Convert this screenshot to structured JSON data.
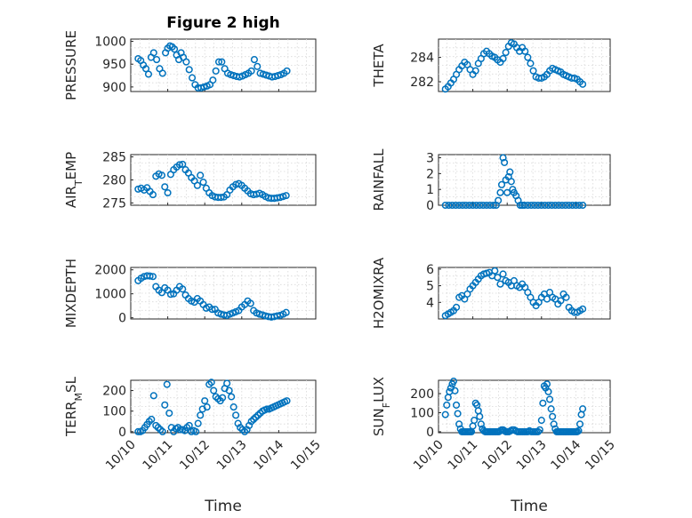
{
  "figure": {
    "title": "Figure 2 high",
    "left_xlabel": "Time",
    "right_xlabel": "Time"
  },
  "colors": {
    "marker": "#0072BD",
    "axis": "#262626",
    "grid": "#d8d8d8"
  },
  "chart_data": [
    {
      "type": "scatter",
      "panel": "pressure",
      "ylabel": "PRESSURE",
      "xticks": [
        "10/10",
        "10/11",
        "10/12",
        "10/13",
        "10/14",
        "10/15"
      ],
      "xtick_labels_visible": false,
      "xlim": [
        0,
        5
      ],
      "ylim": [
        890,
        1005
      ],
      "yticks": [
        900,
        950,
        1000
      ],
      "grid": true,
      "x": [
        0.2,
        0.27,
        0.34,
        0.41,
        0.48,
        0.55,
        0.62,
        0.7,
        0.78,
        0.86,
        0.94,
        1.0,
        1.06,
        1.12,
        1.18,
        1.24,
        1.3,
        1.36,
        1.42,
        1.5,
        1.58,
        1.66,
        1.74,
        1.82,
        1.9,
        1.98,
        2.06,
        2.14,
        2.22,
        2.3,
        2.38,
        2.46,
        2.54,
        2.62,
        2.7,
        2.78,
        2.86,
        2.94,
        3.02,
        3.1,
        3.18,
        3.26,
        3.34,
        3.42,
        3.5,
        3.58,
        3.66,
        3.74,
        3.82,
        3.9,
        3.98,
        4.06,
        4.14,
        4.22
      ],
      "y": [
        962,
        958,
        948,
        940,
        928,
        965,
        975,
        960,
        940,
        930,
        975,
        985,
        990,
        988,
        983,
        970,
        960,
        975,
        965,
        955,
        938,
        920,
        905,
        898,
        898,
        900,
        902,
        905,
        915,
        935,
        955,
        955,
        940,
        930,
        927,
        925,
        923,
        922,
        924,
        927,
        930,
        935,
        960,
        945,
        930,
        928,
        926,
        924,
        922,
        923,
        925,
        927,
        930,
        935
      ]
    },
    {
      "type": "scatter",
      "panel": "theta",
      "ylabel": "THETA",
      "xticks": [
        "10/10",
        "10/11",
        "10/12",
        "10/13",
        "10/14",
        "10/15"
      ],
      "xtick_labels_visible": false,
      "xlim": [
        0,
        5
      ],
      "ylim": [
        281.2,
        285.5
      ],
      "yticks": [
        282,
        284
      ],
      "grid": true,
      "x": [
        0.2,
        0.28,
        0.36,
        0.44,
        0.52,
        0.6,
        0.68,
        0.76,
        0.84,
        0.92,
        1.0,
        1.08,
        1.16,
        1.24,
        1.32,
        1.4,
        1.48,
        1.56,
        1.64,
        1.72,
        1.8,
        1.88,
        1.96,
        2.04,
        2.12,
        2.2,
        2.28,
        2.36,
        2.44,
        2.52,
        2.6,
        2.68,
        2.76,
        2.84,
        2.92,
        3.0,
        3.08,
        3.16,
        3.24,
        3.32,
        3.4,
        3.48,
        3.56,
        3.64,
        3.72,
        3.8,
        3.88,
        3.96,
        4.04,
        4.12,
        4.2
      ],
      "y": [
        281.4,
        281.6,
        281.9,
        282.2,
        282.6,
        283.0,
        283.3,
        283.6,
        283.4,
        283.0,
        282.6,
        282.9,
        283.5,
        283.9,
        284.3,
        284.5,
        284.3,
        284.1,
        284.0,
        283.8,
        283.6,
        283.9,
        284.4,
        284.9,
        285.2,
        285.1,
        284.8,
        284.5,
        284.8,
        284.5,
        284.0,
        283.5,
        282.9,
        282.4,
        282.3,
        282.3,
        282.4,
        282.6,
        282.9,
        283.1,
        283.0,
        282.9,
        282.8,
        282.6,
        282.5,
        282.4,
        282.3,
        282.3,
        282.2,
        282.0,
        281.8
      ]
    },
    {
      "type": "scatter",
      "panel": "air-temp",
      "ylabel": "AIR_TEMP",
      "xticks": [
        "10/10",
        "10/11",
        "10/12",
        "10/13",
        "10/14",
        "10/15"
      ],
      "xtick_labels_visible": false,
      "xlim": [
        0,
        5
      ],
      "ylim": [
        274.5,
        285.5
      ],
      "yticks": [
        275,
        280,
        285
      ],
      "grid": true,
      "x": [
        0.2,
        0.28,
        0.36,
        0.44,
        0.52,
        0.6,
        0.68,
        0.76,
        0.84,
        0.92,
        1.0,
        1.08,
        1.16,
        1.24,
        1.32,
        1.4,
        1.48,
        1.56,
        1.64,
        1.72,
        1.8,
        1.88,
        1.96,
        2.04,
        2.12,
        2.2,
        2.28,
        2.36,
        2.44,
        2.52,
        2.6,
        2.68,
        2.76,
        2.84,
        2.92,
        3.0,
        3.08,
        3.16,
        3.24,
        3.32,
        3.4,
        3.48,
        3.56,
        3.64,
        3.72,
        3.8,
        3.88,
        3.96,
        4.04,
        4.12,
        4.2
      ],
      "y": [
        278,
        278.2,
        277.8,
        278.3,
        277.5,
        276.8,
        280.8,
        281.3,
        281,
        278.5,
        277.2,
        281.2,
        282.2,
        282.8,
        283.3,
        283.4,
        282.2,
        281.5,
        280.5,
        279.8,
        278.8,
        281,
        279.5,
        278.2,
        277.2,
        276.6,
        276.3,
        276.2,
        276.2,
        276.3,
        276.8,
        277.8,
        278.5,
        279,
        279.2,
        278.8,
        278.2,
        277.6,
        277,
        276.8,
        276.9,
        277.1,
        276.8,
        276.4,
        276.1,
        276,
        276,
        276.1,
        276.2,
        276.4,
        276.6
      ]
    },
    {
      "type": "scatter",
      "panel": "rainfall",
      "ylabel": "RAINFALL",
      "xticks": [
        "10/10",
        "10/11",
        "10/12",
        "10/13",
        "10/14",
        "10/15"
      ],
      "xtick_labels_visible": false,
      "xlim": [
        0,
        5
      ],
      "ylim": [
        0,
        3.2
      ],
      "yticks": [
        0,
        1,
        2,
        3
      ],
      "grid": true,
      "x": [
        0.2,
        0.3,
        0.4,
        0.5,
        0.6,
        0.7,
        0.8,
        0.9,
        1.0,
        1.1,
        1.2,
        1.3,
        1.4,
        1.5,
        1.6,
        1.68,
        1.74,
        1.8,
        1.84,
        1.88,
        1.92,
        1.96,
        2.0,
        2.04,
        2.08,
        2.12,
        2.16,
        2.2,
        2.26,
        2.32,
        2.38,
        2.44,
        2.5,
        2.6,
        2.7,
        2.8,
        2.9,
        3.0,
        3.1,
        3.2,
        3.3,
        3.4,
        3.5,
        3.6,
        3.7,
        3.8,
        3.9,
        4.0,
        4.1,
        4.2
      ],
      "y": [
        0,
        0,
        0,
        0,
        0,
        0,
        0,
        0,
        0,
        0,
        0,
        0,
        0,
        0,
        0,
        0,
        0.3,
        0.8,
        1.3,
        3.0,
        2.7,
        1.6,
        0.8,
        1.8,
        2.1,
        1.5,
        1.0,
        0.8,
        0.6,
        0.3,
        0,
        0,
        0,
        0,
        0,
        0,
        0,
        0,
        0,
        0,
        0,
        0,
        0,
        0,
        0,
        0,
        0,
        0,
        0,
        0
      ]
    },
    {
      "type": "scatter",
      "panel": "mixdepth",
      "ylabel": "MIXDEPTH",
      "xticks": [
        "10/10",
        "10/11",
        "10/12",
        "10/13",
        "10/14",
        "10/15"
      ],
      "xtick_labels_visible": false,
      "xlim": [
        0,
        5
      ],
      "ylim": [
        -50,
        2100
      ],
      "yticks": [
        0,
        1000,
        2000
      ],
      "grid": true,
      "x": [
        0.2,
        0.28,
        0.36,
        0.44,
        0.52,
        0.6,
        0.68,
        0.76,
        0.84,
        0.92,
        1.0,
        1.08,
        1.16,
        1.24,
        1.32,
        1.4,
        1.48,
        1.56,
        1.64,
        1.72,
        1.8,
        1.88,
        1.96,
        2.04,
        2.12,
        2.2,
        2.28,
        2.36,
        2.44,
        2.52,
        2.6,
        2.68,
        2.76,
        2.84,
        2.92,
        3.0,
        3.08,
        3.16,
        3.24,
        3.32,
        3.4,
        3.48,
        3.56,
        3.64,
        3.72,
        3.8,
        3.88,
        3.96,
        4.04,
        4.12,
        4.2
      ],
      "y": [
        1550,
        1650,
        1720,
        1750,
        1740,
        1720,
        1300,
        1150,
        1050,
        1250,
        1150,
        980,
        1000,
        1150,
        1300,
        1200,
        950,
        800,
        700,
        650,
        800,
        700,
        550,
        400,
        450,
        350,
        350,
        200,
        150,
        120,
        100,
        150,
        200,
        250,
        300,
        450,
        550,
        700,
        600,
        300,
        200,
        150,
        120,
        80,
        50,
        30,
        50,
        80,
        100,
        150,
        220
      ]
    },
    {
      "type": "scatter",
      "panel": "h2omixra",
      "ylabel": "H2OMIXRA",
      "xticks": [
        "10/10",
        "10/11",
        "10/12",
        "10/13",
        "10/14",
        "10/15"
      ],
      "xtick_labels_visible": false,
      "xlim": [
        0,
        5
      ],
      "ylim": [
        3.0,
        6.1
      ],
      "yticks": [
        4,
        5,
        6
      ],
      "grid": true,
      "x": [
        0.2,
        0.28,
        0.36,
        0.44,
        0.52,
        0.6,
        0.68,
        0.76,
        0.84,
        0.92,
        1.0,
        1.08,
        1.16,
        1.24,
        1.32,
        1.4,
        1.48,
        1.56,
        1.64,
        1.72,
        1.8,
        1.88,
        1.96,
        2.04,
        2.12,
        2.2,
        2.28,
        2.36,
        2.44,
        2.52,
        2.6,
        2.68,
        2.76,
        2.84,
        2.92,
        3.0,
        3.08,
        3.16,
        3.24,
        3.32,
        3.4,
        3.48,
        3.56,
        3.64,
        3.72,
        3.8,
        3.88,
        3.96,
        4.04,
        4.12,
        4.2
      ],
      "y": [
        3.2,
        3.3,
        3.4,
        3.5,
        3.7,
        4.3,
        4.4,
        4.2,
        4.5,
        4.8,
        5.0,
        5.2,
        5.4,
        5.6,
        5.7,
        5.75,
        5.8,
        5.6,
        5.9,
        5.5,
        5.1,
        5.7,
        5.3,
        5.2,
        5.0,
        5.3,
        5.0,
        4.9,
        5.1,
        4.9,
        4.6,
        4.3,
        4.0,
        3.8,
        4.0,
        4.3,
        4.5,
        4.2,
        4.6,
        4.3,
        4.2,
        3.9,
        4.1,
        4.5,
        4.3,
        3.7,
        3.5,
        3.4,
        3.4,
        3.5,
        3.6
      ]
    },
    {
      "type": "scatter",
      "panel": "terr-msl",
      "ylabel": "TERR_MSL",
      "xticks": [
        "10/10",
        "10/11",
        "10/12",
        "10/13",
        "10/14",
        "10/15"
      ],
      "xtick_labels_visible": true,
      "xlim": [
        0,
        5
      ],
      "ylim": [
        -5,
        250
      ],
      "yticks": [
        0,
        100,
        200
      ],
      "grid": true,
      "x": [
        0.2,
        0.26,
        0.32,
        0.38,
        0.44,
        0.5,
        0.56,
        0.62,
        0.68,
        0.74,
        0.8,
        0.86,
        0.92,
        0.98,
        1.04,
        1.1,
        1.16,
        1.22,
        1.28,
        1.34,
        1.4,
        1.46,
        1.52,
        1.58,
        1.64,
        1.7,
        1.76,
        1.82,
        1.88,
        1.94,
        2.0,
        2.06,
        2.12,
        2.18,
        2.24,
        2.3,
        2.36,
        2.42,
        2.48,
        2.54,
        2.6,
        2.66,
        2.72,
        2.78,
        2.84,
        2.9,
        2.96,
        3.02,
        3.08,
        3.14,
        3.2,
        3.26,
        3.32,
        3.38,
        3.44,
        3.5,
        3.56,
        3.62,
        3.68,
        3.74,
        3.8,
        3.86,
        3.92,
        3.98,
        4.04,
        4.1,
        4.16,
        4.22
      ],
      "y": [
        0,
        0,
        5,
        20,
        35,
        50,
        60,
        175,
        30,
        20,
        10,
        0,
        130,
        230,
        90,
        20,
        0,
        15,
        20,
        10,
        10,
        5,
        20,
        30,
        0,
        5,
        0,
        40,
        80,
        110,
        150,
        120,
        230,
        240,
        200,
        170,
        160,
        150,
        165,
        210,
        235,
        200,
        170,
        120,
        80,
        40,
        20,
        10,
        0,
        10,
        30,
        50,
        60,
        70,
        80,
        90,
        100,
        105,
        110,
        110,
        115,
        120,
        125,
        130,
        135,
        140,
        145,
        150
      ]
    },
    {
      "type": "scatter",
      "panel": "sun-flux",
      "ylabel": "SUN_FLUX",
      "xticks": [
        "10/10",
        "10/11",
        "10/12",
        "10/13",
        "10/14",
        "10/15"
      ],
      "xtick_labels_visible": true,
      "xlim": [
        0,
        5
      ],
      "ylim": [
        -5,
        270
      ],
      "yticks": [
        0,
        100,
        200
      ],
      "grid": true,
      "x": [
        0.2,
        0.24,
        0.28,
        0.32,
        0.36,
        0.4,
        0.44,
        0.48,
        0.52,
        0.56,
        0.6,
        0.64,
        0.68,
        0.72,
        0.76,
        0.8,
        0.84,
        0.88,
        0.92,
        0.96,
        1.0,
        1.04,
        1.08,
        1.12,
        1.16,
        1.2,
        1.24,
        1.28,
        1.32,
        1.36,
        1.4,
        1.44,
        1.48,
        1.52,
        1.56,
        1.6,
        1.64,
        1.68,
        1.72,
        1.76,
        1.8,
        1.84,
        1.88,
        1.92,
        1.96,
        2.0,
        2.05,
        2.1,
        2.15,
        2.2,
        2.25,
        2.3,
        2.35,
        2.4,
        2.45,
        2.5,
        2.55,
        2.6,
        2.65,
        2.7,
        2.75,
        2.8,
        2.85,
        2.9,
        2.95,
        3.0,
        3.04,
        3.08,
        3.12,
        3.16,
        3.2,
        3.24,
        3.28,
        3.32,
        3.36,
        3.4,
        3.44,
        3.48,
        3.52,
        3.56,
        3.6,
        3.64,
        3.68,
        3.72,
        3.76,
        3.8,
        3.84,
        3.88,
        3.92,
        3.96,
        4.0,
        4.04,
        4.08,
        4.12,
        4.16,
        4.2
      ],
      "y": [
        90,
        140,
        180,
        210,
        230,
        250,
        265,
        215,
        140,
        95,
        40,
        15,
        0,
        0,
        0,
        0,
        0,
        0,
        0,
        0,
        30,
        60,
        150,
        140,
        110,
        80,
        40,
        15,
        5,
        0,
        0,
        0,
        0,
        0,
        0,
        0,
        0,
        0,
        0,
        0,
        5,
        10,
        10,
        5,
        0,
        0,
        0,
        5,
        10,
        10,
        5,
        0,
        0,
        0,
        0,
        0,
        0,
        0,
        5,
        0,
        0,
        0,
        0,
        0,
        10,
        60,
        150,
        240,
        230,
        250,
        210,
        170,
        120,
        80,
        40,
        15,
        0,
        0,
        0,
        0,
        0,
        0,
        0,
        0,
        0,
        0,
        0,
        0,
        0,
        0,
        0,
        0,
        5,
        40,
        90,
        120
      ]
    }
  ]
}
